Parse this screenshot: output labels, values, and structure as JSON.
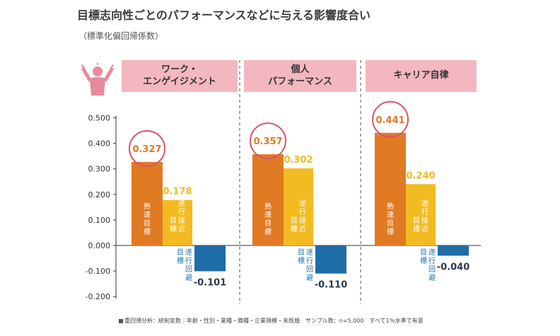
{
  "title": "目標志向性ごとのパフォーマンスなどに与える影響度合い",
  "subtitle": "（標準化偏回帰係数）",
  "footnote": "重回帰分析：統制変数｜年齢・性別・業種・職種・企業規模・未既婚　サンプル数：n=5,000　すべて1％水準で有意",
  "colors": {
    "mastery": "#e07a23",
    "approach": "#f2bb22",
    "avoidance": "#1f6ea8",
    "header": "#f3b7c0",
    "circle": "#d9546b",
    "icon": "#e88a9b"
  },
  "chart_data": {
    "type": "bar",
    "title": "目標志向性ごとのパフォーマンスなどに与える影響度合い",
    "subtitle": "（標準化偏回帰係数）",
    "ylim": [
      -0.2,
      0.5
    ],
    "yticks": [
      "0.500",
      "0.400",
      "0.300",
      "0.200",
      "0.100",
      "0.000",
      "-0.100",
      "-0.200"
    ],
    "grid": false,
    "categories": [
      "ワーク・\nエンゲイジメント",
      "個人\nパフォーマンス",
      "キャリア自律"
    ],
    "series": [
      {
        "name": "熟達目標",
        "values": [
          0.327,
          0.357,
          0.441
        ],
        "labels": [
          "0.327",
          "0.357",
          "0.441"
        ]
      },
      {
        "name": "遂行接近目標",
        "values": [
          0.178,
          0.302,
          0.24
        ],
        "labels": [
          "0.178",
          "0.302",
          "0.240"
        ]
      },
      {
        "name": "遂行回避目標",
        "values": [
          -0.101,
          -0.11,
          -0.04
        ],
        "labels": [
          "-0.101",
          "-0.110",
          "-0.040"
        ]
      }
    ],
    "highlighted_series": "熟達目標"
  }
}
